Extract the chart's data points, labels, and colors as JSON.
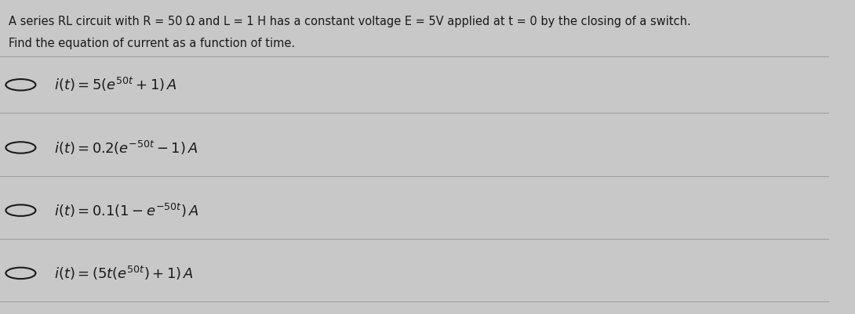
{
  "background_color": "#c8c8c8",
  "text_color": "#1a1a1a",
  "title_line1": "A series RL circuit with R = 50 Ω and L = 1 H has a constant voltage E = 5V applied at t = 0 by the closing of a switch.",
  "title_line2": "Find the equation of current as a function of time.",
  "options": [
    "i(t) = 5(e^{50t} + 1) A",
    "i(t) = 0.2(e^{-50t} – 1) A",
    "i(t) = 0.1(1 – e^{-50t}) A",
    "i(t) = (5t(e^{50t}) + 1) A"
  ],
  "option_latex": [
    "$i(t) = 5(e^{50t} + 1)\\, A$",
    "$i(t) = 0.2(e^{-50t} - 1)\\, A$",
    "$i(t) = 0.1(1 - e^{-50t})\\, A$",
    "$i(t) = (5t(e^{50t}) + 1)\\, A$"
  ],
  "divider_color": "#a0a0a0",
  "circle_color": "#1a1a1a",
  "figsize": [
    10.9,
    4.01
  ],
  "dpi": 100
}
